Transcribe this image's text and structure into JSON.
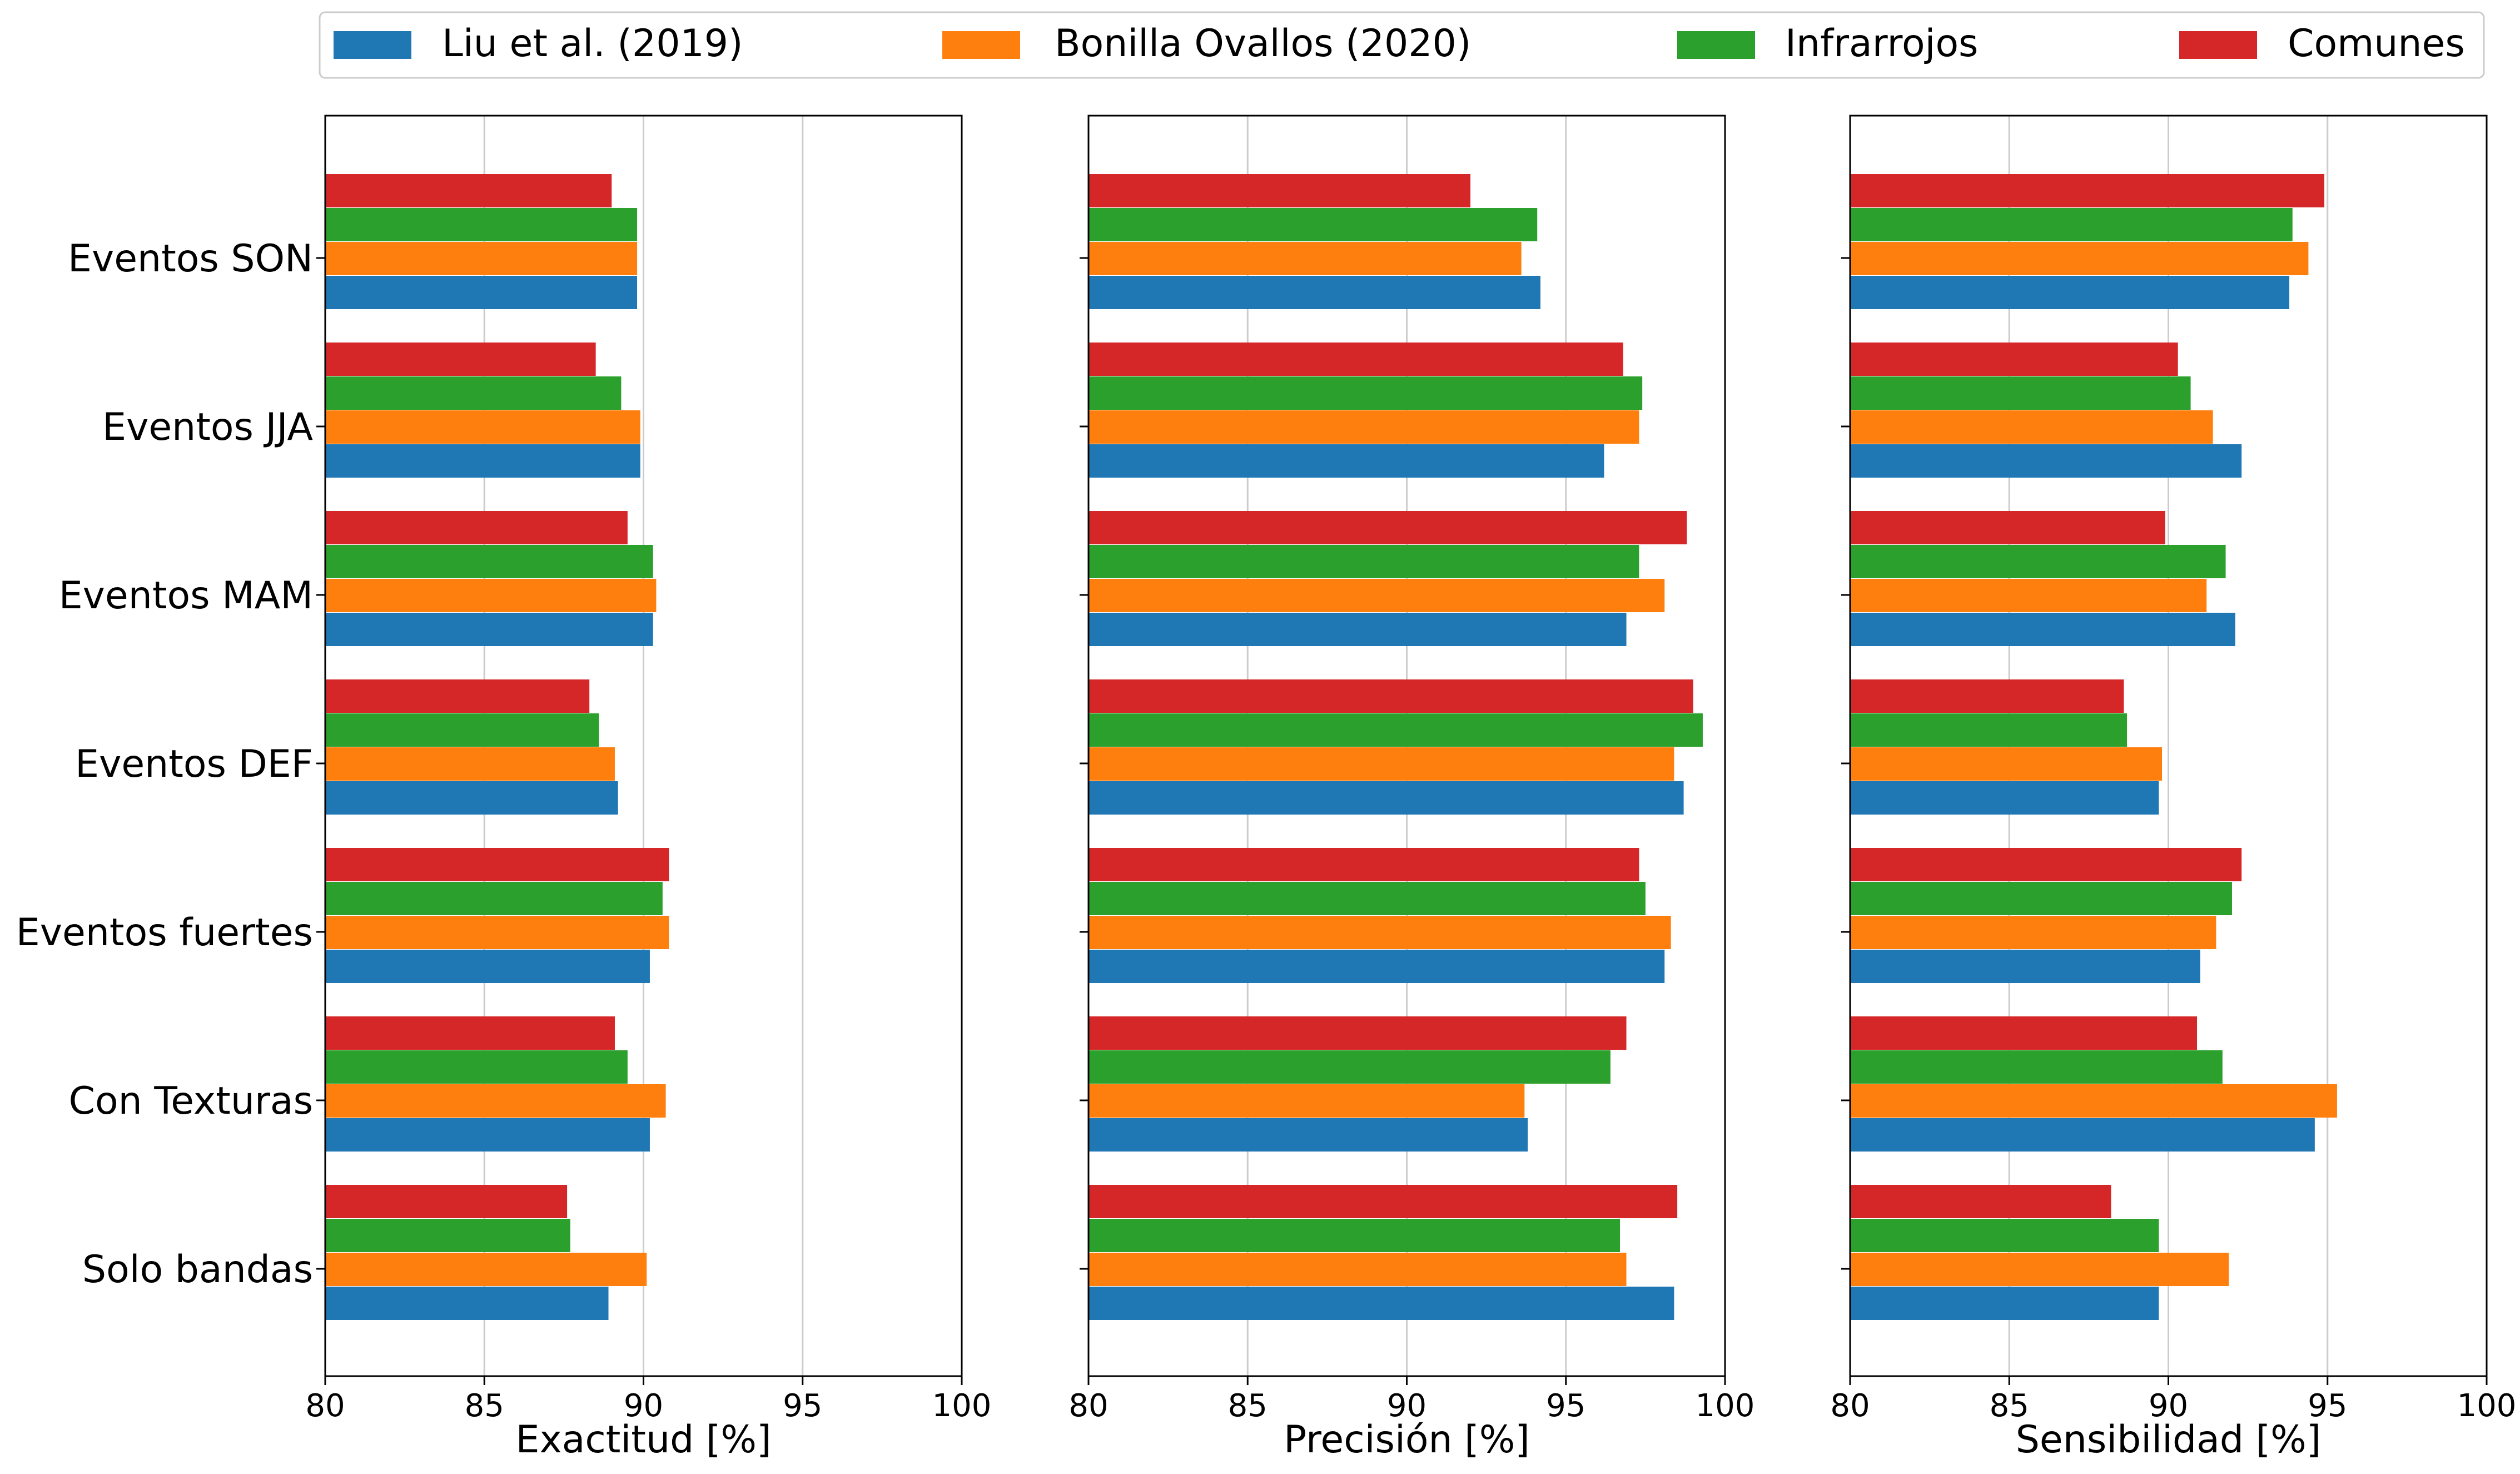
{
  "chart_data": {
    "type": "bar",
    "orientation": "horizontal",
    "legend_position": "top",
    "categories": [
      "Eventos SON",
      "Eventos JJA",
      "Eventos MAM",
      "Eventos DEF",
      "Eventos fuertes",
      "Con Texturas",
      "Solo bandas"
    ],
    "series_names": [
      "Liu et al. (2019)",
      "Bonilla Ovallos (2020)",
      "Infrarrojos",
      "Comunes"
    ],
    "colors": [
      "#1f77b4",
      "#ff7f0e",
      "#2ca02c",
      "#d62728"
    ],
    "panels": [
      {
        "xlabel": "Exactitud [%]",
        "xlim": [
          80,
          100
        ],
        "xticks": [
          "80",
          "85",
          "90",
          "95",
          "100"
        ],
        "grid": true,
        "series": [
          {
            "name": "Liu et al. (2019)",
            "values": [
              89.8,
              89.9,
              90.3,
              89.2,
              90.2,
              90.2,
              88.9
            ]
          },
          {
            "name": "Bonilla Ovallos (2020)",
            "values": [
              89.8,
              89.9,
              90.4,
              89.1,
              90.8,
              90.7,
              90.1
            ]
          },
          {
            "name": "Infrarrojos",
            "values": [
              89.8,
              89.3,
              90.3,
              88.6,
              90.6,
              89.5,
              87.7
            ]
          },
          {
            "name": "Comunes",
            "values": [
              89.0,
              88.5,
              89.5,
              88.3,
              90.8,
              89.1,
              87.6
            ]
          }
        ]
      },
      {
        "xlabel": "Precisión [%]",
        "xlim": [
          80,
          100
        ],
        "xticks": [
          "80",
          "85",
          "90",
          "95",
          "100"
        ],
        "grid": true,
        "series": [
          {
            "name": "Liu et al. (2019)",
            "values": [
              94.2,
              96.2,
              96.9,
              98.7,
              98.1,
              93.8,
              98.4
            ]
          },
          {
            "name": "Bonilla Ovallos (2020)",
            "values": [
              93.6,
              97.3,
              98.1,
              98.4,
              98.3,
              93.7,
              96.9
            ]
          },
          {
            "name": "Infrarrojos",
            "values": [
              94.1,
              97.4,
              97.3,
              99.3,
              97.5,
              96.4,
              96.7
            ]
          },
          {
            "name": "Comunes",
            "values": [
              92.0,
              96.8,
              98.8,
              99.0,
              97.3,
              96.9,
              98.5
            ]
          }
        ]
      },
      {
        "xlabel": "Sensibilidad [%]",
        "xlim": [
          80,
          100
        ],
        "xticks": [
          "80",
          "85",
          "90",
          "95",
          "100"
        ],
        "grid": true,
        "series": [
          {
            "name": "Liu et al. (2019)",
            "values": [
              93.8,
              92.3,
              92.1,
              89.7,
              91.0,
              94.6,
              89.7
            ]
          },
          {
            "name": "Bonilla Ovallos (2020)",
            "values": [
              94.4,
              91.4,
              91.2,
              89.8,
              91.5,
              95.3,
              91.9
            ]
          },
          {
            "name": "Infrarrojos",
            "values": [
              93.9,
              90.7,
              91.8,
              88.7,
              92.0,
              91.7,
              89.7
            ]
          },
          {
            "name": "Comunes",
            "values": [
              94.9,
              90.3,
              89.9,
              88.6,
              92.3,
              90.9,
              88.2
            ]
          }
        ]
      }
    ]
  }
}
